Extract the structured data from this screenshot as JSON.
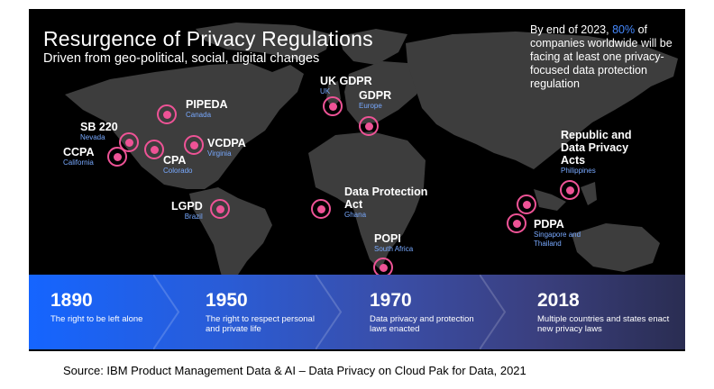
{
  "title": "Resurgence of Privacy Regulations",
  "subtitle": "Driven from geo-political, social, digital changes",
  "stat": {
    "before": "By end of 2023,",
    "highlight": "80%",
    "after": "of companies worldwide will be facing at least one privacy-focused data protection regulation",
    "highlight_color": "#4589ff"
  },
  "colors": {
    "marker": "#ee5396",
    "region": "#78a9ff",
    "map": "#3d3d3d",
    "panel": "#000000"
  },
  "regulations": [
    {
      "name": "PIPEDA",
      "region": "Canada"
    },
    {
      "name": "SB 220",
      "region": "Nevada"
    },
    {
      "name": "CCPA",
      "region": "California"
    },
    {
      "name": "CPA",
      "region": "Colorado"
    },
    {
      "name": "VCDPA",
      "region": "Virginia"
    },
    {
      "name": "LGPD",
      "region": "Brazil"
    },
    {
      "name": "UK GDPR",
      "region": "UK"
    },
    {
      "name": "GDPR",
      "region": "Europe"
    },
    {
      "name": "Data Protection Act",
      "region": "Ghana"
    },
    {
      "name": "POPI",
      "region": "South Africa"
    },
    {
      "name": "Republic and Data Privacy Acts",
      "region": "Philippines"
    },
    {
      "name": "PDPA",
      "region": "Singapore and Thailand"
    }
  ],
  "timeline": [
    {
      "year": "1890",
      "desc": "The right to be left alone"
    },
    {
      "year": "1950",
      "desc": "The right to respect personal and private life"
    },
    {
      "year": "1970",
      "desc": "Data privacy and protection laws enacted"
    },
    {
      "year": "2018",
      "desc": "Multiple countries and states enact new privacy laws"
    }
  ],
  "source": "Source: IBM Product Management Data & AI – Data Privacy on Cloud Pak for Data, 2021"
}
